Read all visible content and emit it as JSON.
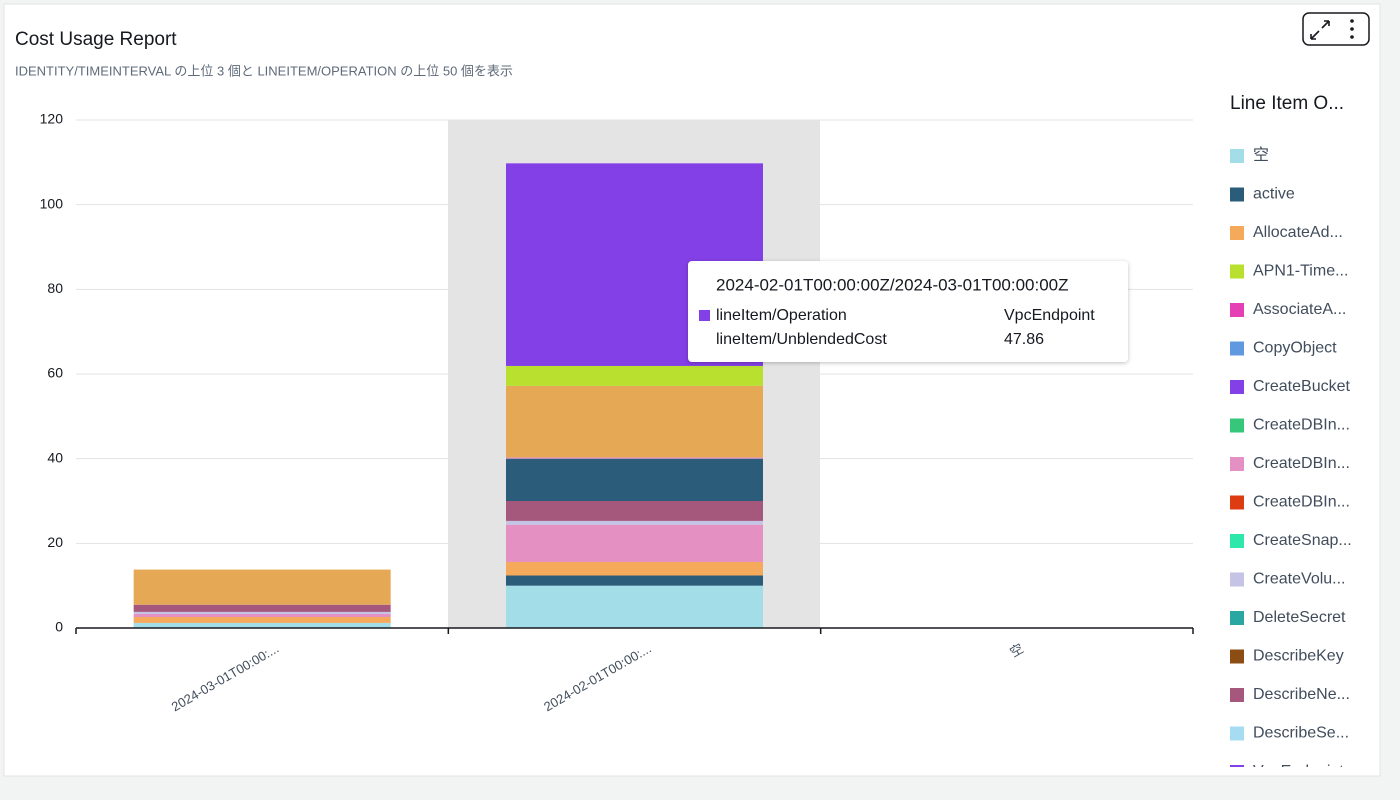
{
  "title": "Cost Usage Report",
  "subtitle": "IDENTITY/TIMEINTERVAL の上位 3 個と LINEITEM/OPERATION の上位 50 個を表示",
  "chart_data": {
    "type": "bar",
    "stacked": true,
    "grid": true,
    "categories": [
      "2024-03-01T00:00:...",
      "2024-02-01T00:00:...",
      "空"
    ],
    "ylim": [
      0,
      120
    ],
    "yticks": [
      0,
      20,
      40,
      60,
      80,
      100,
      120
    ],
    "legend_title": "Line Item O...",
    "legend_position": "right",
    "series": [
      {
        "name": "空",
        "color": "#a3dde8",
        "values": [
          1.2,
          10.0,
          null
        ]
      },
      {
        "name": "active",
        "color": "#2b5d7b",
        "values": [
          0,
          2.4,
          null
        ]
      },
      {
        "name": "AllocateAd...",
        "color": "#f4a95b",
        "values": [
          1.4,
          3.2,
          null
        ]
      },
      {
        "name": "APN1-Time...",
        "color": "#b9e02f",
        "values": [
          0,
          0,
          null
        ]
      },
      {
        "name": "AssociateA...",
        "color": "#e43fb4",
        "values": [
          0,
          0,
          null
        ]
      },
      {
        "name": "CopyObject",
        "color": "#6199e0",
        "values": [
          0,
          0,
          null
        ]
      },
      {
        "name": "CreateBucket",
        "color": "#8340e6",
        "values": [
          0,
          0,
          null
        ]
      },
      {
        "name": "CreateDBIn...",
        "color": "#37c77a",
        "values": [
          0,
          0,
          null
        ]
      },
      {
        "name": "CreateDBIn...",
        "color": "#e490c2",
        "values": [
          0.7,
          8.8,
          null
        ]
      },
      {
        "name": "CreateDBIn...",
        "color": "#dd3b12",
        "values": [
          0,
          0,
          null
        ]
      },
      {
        "name": "CreateSnap...",
        "color": "#2ee8ab",
        "values": [
          0,
          0,
          null
        ]
      },
      {
        "name": "CreateVolu...",
        "color": "#c5c3e6",
        "values": [
          0.5,
          0.9,
          null
        ]
      },
      {
        "name": "DeleteSecret",
        "color": "#2aa7a3",
        "values": [
          0,
          0,
          null
        ]
      },
      {
        "name": "DescribeKey",
        "color": "#8b4d14",
        "values": [
          0,
          0,
          null
        ]
      },
      {
        "name": "DescribeNe...",
        "color": "#a5587b",
        "values": [
          1.7,
          4.7,
          null
        ]
      },
      {
        "name": "DescribeSe...",
        "color": "#a6dcf2",
        "values": [
          0,
          0,
          null
        ]
      },
      {
        "name": null,
        "color": "#2b5d7b",
        "values": [
          0,
          10.0,
          null
        ]
      },
      {
        "name": null,
        "color": "#e490c2",
        "values": [
          0,
          0.3,
          null
        ]
      },
      {
        "name": null,
        "color": "#e5a855",
        "values": [
          8.3,
          16.9,
          null
        ]
      },
      {
        "name": null,
        "color": "#b9e02f",
        "values": [
          0,
          4.7,
          null
        ]
      },
      {
        "name": "VpcEndpoint",
        "color": "#8340e6",
        "values": [
          0,
          47.86,
          null
        ]
      }
    ],
    "tooltip": {
      "title": "2024-02-01T00:00:00Z/2024-03-01T00:00:00Z",
      "rows": [
        [
          "lineItem/Operation",
          "VpcEndpoint"
        ],
        [
          "lineItem/UnblendedCost",
          47.86
        ]
      ]
    }
  }
}
